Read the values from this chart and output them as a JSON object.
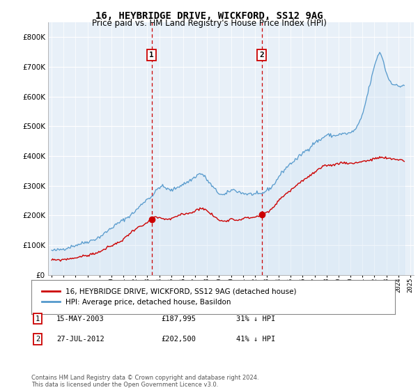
{
  "title": "16, HEYBRIDGE DRIVE, WICKFORD, SS12 9AG",
  "subtitle": "Price paid vs. HM Land Registry's House Price Index (HPI)",
  "legend_label_red": "16, HEYBRIDGE DRIVE, WICKFORD, SS12 9AG (detached house)",
  "legend_label_blue": "HPI: Average price, detached house, Basildon",
  "annotation1_label": "1",
  "annotation1_date": "15-MAY-2003",
  "annotation1_price": 187995,
  "annotation1_text": "31% ↓ HPI",
  "annotation2_label": "2",
  "annotation2_date": "27-JUL-2012",
  "annotation2_price": 202500,
  "annotation2_text": "41% ↓ HPI",
  "footer": "Contains HM Land Registry data © Crown copyright and database right 2024.\nThis data is licensed under the Open Government Licence v3.0.",
  "ylim": [
    0,
    850000
  ],
  "yticks": [
    0,
    100000,
    200000,
    300000,
    400000,
    500000,
    600000,
    700000,
    800000
  ],
  "color_red": "#cc0000",
  "color_blue_fill": "#d0e4f5",
  "color_blue_line": "#5599cc",
  "background_chart": "#e8f0f8",
  "grid_color": "#ffffff",
  "sale1_x": 2003.37,
  "sale2_x": 2012.58
}
